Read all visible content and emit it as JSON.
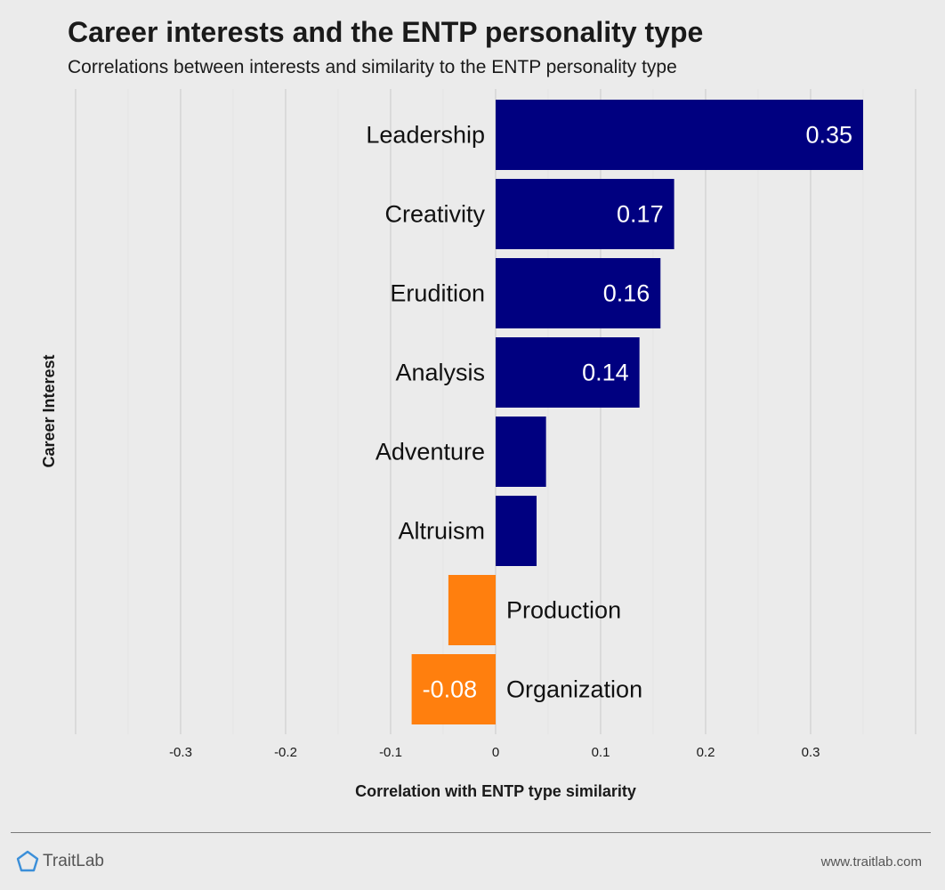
{
  "chart_data": {
    "type": "bar",
    "orientation": "horizontal",
    "title": "Career interests and the ENTP personality type",
    "subtitle": "Correlations between interests and similarity to the ENTP personality type",
    "xlabel": "Correlation with ENTP type similarity",
    "ylabel": "Career Interest",
    "categories": [
      "Leadership",
      "Creativity",
      "Erudition",
      "Analysis",
      "Adventure",
      "Altruism",
      "Production",
      "Organization"
    ],
    "values": [
      0.35,
      0.17,
      0.157,
      0.137,
      0.048,
      0.039,
      -0.045,
      -0.08
    ],
    "data_labels": [
      "0.35",
      "0.17",
      "0.16",
      "0.14",
      "",
      "",
      "",
      "-0.08"
    ],
    "xlim": [
      -0.4,
      0.4
    ],
    "xticks": [
      -0.3,
      -0.2,
      -0.1,
      0,
      0.1,
      0.2,
      0.3
    ],
    "xtick_labels": [
      "-0.3",
      "-0.2",
      "-0.1",
      "0",
      "0.1",
      "0.2",
      "0.3"
    ],
    "grid": true,
    "colors": {
      "positive": "#000080",
      "negative": "#ff7f0e"
    }
  },
  "footer": {
    "brand": "TraitLab",
    "brand_icon": "pentagon-logo-icon",
    "brand_icon_color": "#3b8fd9",
    "url": "www.traitlab.com"
  }
}
